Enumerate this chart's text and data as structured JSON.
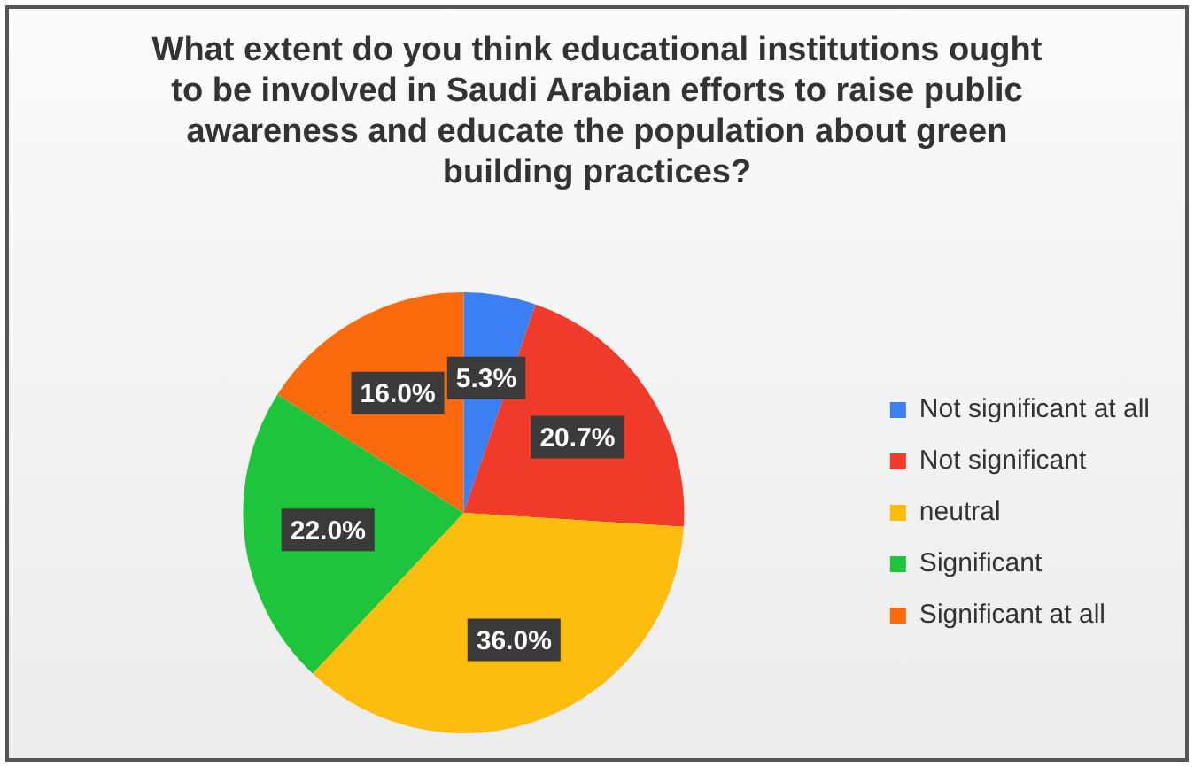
{
  "chart_data": {
    "type": "pie",
    "title": "What extent do you think educational institutions ought to be involved in Saudi Arabian efforts to raise public awareness and educate the population about green building practices?",
    "categories": [
      "Not significant at all",
      "Not significant",
      "neutral",
      "Significant",
      "Significant at all"
    ],
    "values": [
      5.3,
      20.7,
      36.0,
      22.0,
      16.0
    ],
    "colors": [
      "#3b7ff2",
      "#f03a2a",
      "#fdbd0f",
      "#1dc43c",
      "#fb6a0c"
    ],
    "value_labels": [
      "5.3%",
      "20.7%",
      "36.0%",
      "22.0%",
      "16.0%"
    ],
    "legend": "right"
  }
}
